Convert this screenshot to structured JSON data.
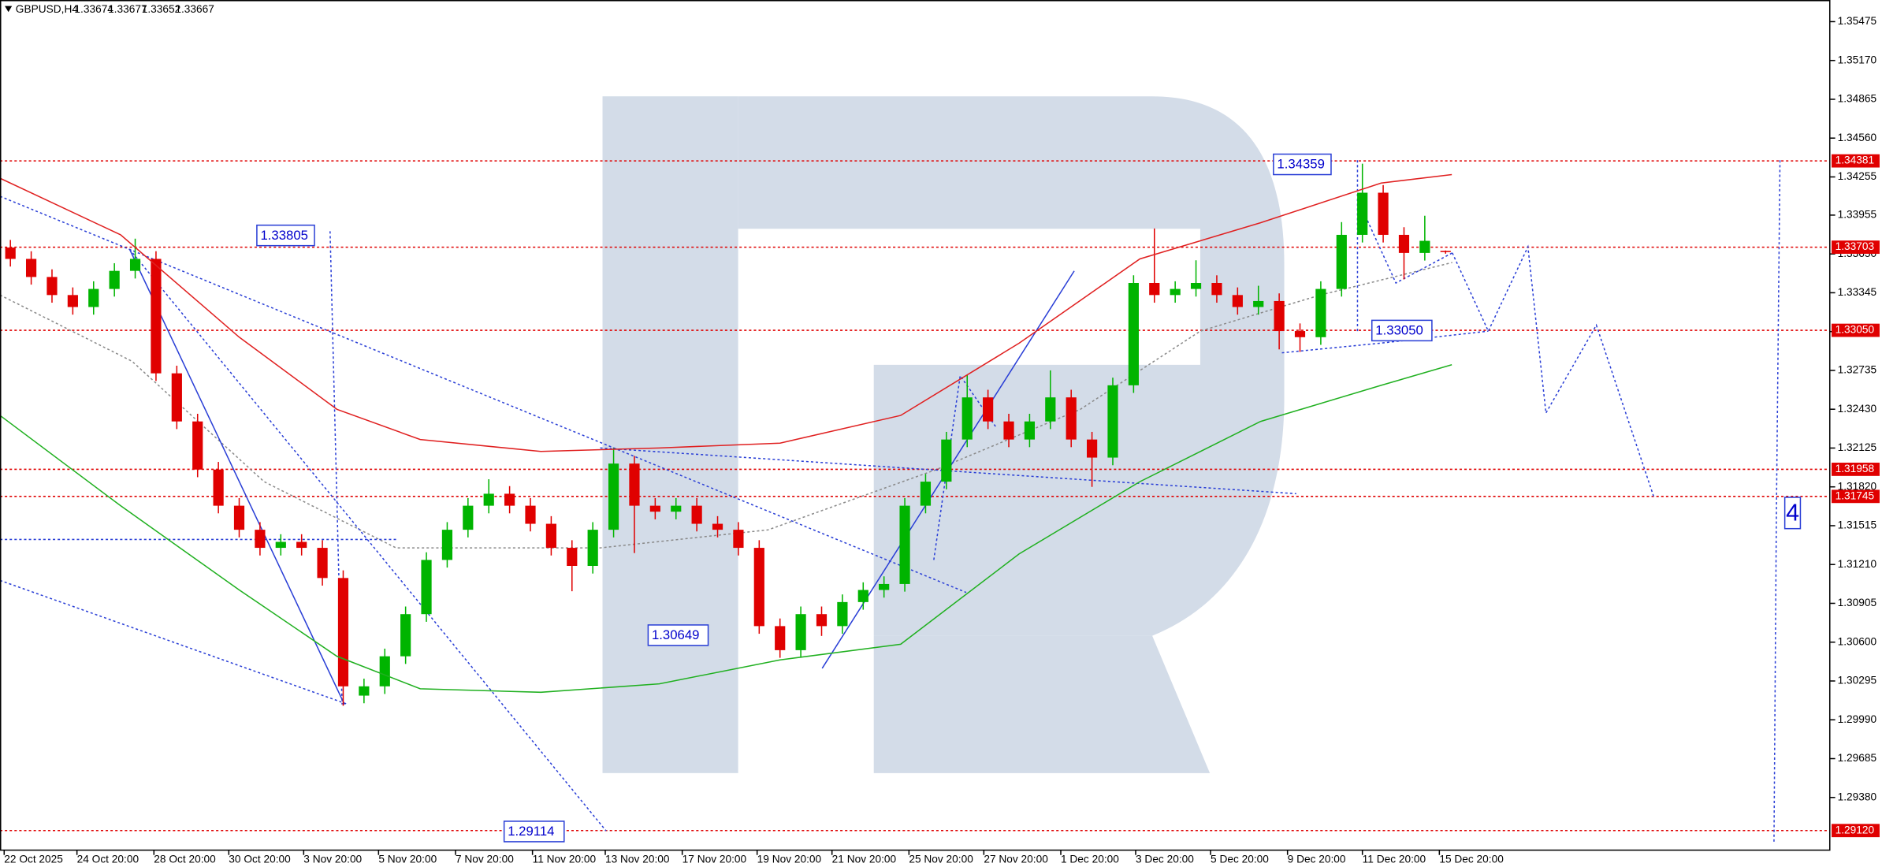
{
  "chart_data": {
    "type": "candlestick",
    "symbol": "GBPUSD,H4",
    "header_values": [
      1.33674,
      1.33677,
      1.33652,
      1.33667
    ],
    "up_color": "#00b400",
    "down_color": "#e00000",
    "ohlc": [
      [
        1.337,
        1.3376,
        1.33551,
        1.33611
      ],
      [
        1.33611,
        1.33671,
        1.33409,
        1.33469
      ],
      [
        1.33469,
        1.33529,
        1.33267,
        1.33327
      ],
      [
        1.33327,
        1.33387,
        1.33173,
        1.33233
      ],
      [
        1.33233,
        1.33435,
        1.33173,
        1.33375
      ],
      [
        1.33375,
        1.33577,
        1.33315,
        1.33517
      ],
      [
        1.33517,
        1.3377,
        1.33457,
        1.33611
      ],
      [
        1.33611,
        1.33671,
        1.32652,
        1.32712
      ],
      [
        1.32712,
        1.32772,
        1.32274,
        1.32334
      ],
      [
        1.32334,
        1.32394,
        1.31896,
        1.31956
      ],
      [
        1.31956,
        1.32016,
        1.31612,
        1.31672
      ],
      [
        1.31672,
        1.31732,
        1.31423,
        1.31483
      ],
      [
        1.31483,
        1.31543,
        1.31281,
        1.31341
      ],
      [
        1.31341,
        1.31448,
        1.31281,
        1.31388
      ],
      [
        1.31388,
        1.31448,
        1.31281,
        1.31341
      ],
      [
        1.31341,
        1.31401,
        1.31044,
        1.31104
      ],
      [
        1.31104,
        1.31164,
        1.301,
        1.30253
      ],
      [
        1.3018,
        1.30313,
        1.3012,
        1.30253
      ],
      [
        1.30253,
        1.30549,
        1.30193,
        1.30489
      ],
      [
        1.30489,
        1.3088,
        1.30429,
        1.3082
      ],
      [
        1.3082,
        1.31306,
        1.3076,
        1.31246
      ],
      [
        1.31246,
        1.31543,
        1.31186,
        1.31483
      ],
      [
        1.31483,
        1.31732,
        1.31423,
        1.31672
      ],
      [
        1.31672,
        1.3188,
        1.31612,
        1.31766
      ],
      [
        1.31766,
        1.31826,
        1.31612,
        1.31672
      ],
      [
        1.31672,
        1.31732,
        1.3147,
        1.3153
      ],
      [
        1.3153,
        1.3159,
        1.31281,
        1.31341
      ],
      [
        1.31341,
        1.31401,
        1.31,
        1.31199
      ],
      [
        1.31199,
        1.31543,
        1.31139,
        1.31483
      ],
      [
        1.31483,
        1.32125,
        1.31423,
        1.32003
      ],
      [
        1.32003,
        1.32063,
        1.313,
        1.31672
      ],
      [
        1.31672,
        1.31732,
        1.31565,
        1.31625
      ],
      [
        1.31625,
        1.31732,
        1.31565,
        1.31672
      ],
      [
        1.31672,
        1.31732,
        1.3147,
        1.3153
      ],
      [
        1.3153,
        1.3159,
        1.31423,
        1.31483
      ],
      [
        1.31483,
        1.31543,
        1.31281,
        1.31341
      ],
      [
        1.31341,
        1.31401,
        1.30666,
        1.30726
      ],
      [
        1.30726,
        1.30786,
        1.30477,
        1.30537
      ],
      [
        1.30537,
        1.3088,
        1.30477,
        1.3082
      ],
      [
        1.3082,
        1.3088,
        1.30649,
        1.30726
      ],
      [
        1.30726,
        1.30975,
        1.30666,
        1.30915
      ],
      [
        1.30915,
        1.3107,
        1.30855,
        1.3101
      ],
      [
        1.3101,
        1.31117,
        1.3095,
        1.31057
      ],
      [
        1.31057,
        1.31732,
        1.30997,
        1.31672
      ],
      [
        1.31672,
        1.31921,
        1.31612,
        1.31861
      ],
      [
        1.31861,
        1.32252,
        1.31801,
        1.32192
      ],
      [
        1.32192,
        1.327,
        1.32132,
        1.32523
      ],
      [
        1.32523,
        1.32583,
        1.32274,
        1.32334
      ],
      [
        1.32334,
        1.32394,
        1.32132,
        1.32192
      ],
      [
        1.32192,
        1.32394,
        1.32132,
        1.32334
      ],
      [
        1.32334,
        1.32735,
        1.32274,
        1.32523
      ],
      [
        1.32523,
        1.32583,
        1.32132,
        1.32192
      ],
      [
        1.32192,
        1.32252,
        1.3182,
        1.3205
      ],
      [
        1.3205,
        1.32678,
        1.3199,
        1.32618
      ],
      [
        1.32618,
        1.33482,
        1.32558,
        1.33422
      ],
      [
        1.33422,
        1.3385,
        1.33267,
        1.33327
      ],
      [
        1.33327,
        1.33435,
        1.33267,
        1.33375
      ],
      [
        1.33375,
        1.336,
        1.33315,
        1.33422
      ],
      [
        1.33422,
        1.33482,
        1.33267,
        1.33327
      ],
      [
        1.33327,
        1.33387,
        1.33173,
        1.33233
      ],
      [
        1.33233,
        1.334,
        1.33173,
        1.3328
      ],
      [
        1.3328,
        1.3334,
        1.329,
        1.33044
      ],
      [
        1.33044,
        1.33104,
        1.3288,
        1.32996
      ],
      [
        1.32996,
        1.33435,
        1.32936,
        1.33375
      ],
      [
        1.33375,
        1.339,
        1.33315,
        1.338
      ],
      [
        1.338,
        1.34359,
        1.3374,
        1.34131
      ],
      [
        1.34131,
        1.34191,
        1.3374,
        1.338
      ],
      [
        1.338,
        1.3386,
        1.3345,
        1.33658
      ],
      [
        1.33658,
        1.3395,
        1.33598,
        1.33753
      ],
      [
        1.33674,
        1.33677,
        1.33652,
        1.33667
      ]
    ],
    "series": [
      {
        "color": "#e02020",
        "x": [
          -0.5,
          5.3,
          11.0,
          15.7,
          19.7,
          25.5,
          31.2,
          37.0,
          42.8,
          48.5,
          54.3,
          60.1,
          65.9,
          69.3
        ],
        "values": [
          1.34245,
          1.338,
          1.32996,
          1.32429,
          1.32192,
          1.32098,
          1.32126,
          1.32164,
          1.32381,
          1.32949,
          1.33611,
          1.33895,
          1.34207,
          1.34273
        ]
      },
      {
        "color": "#20b020",
        "x": [
          -0.5,
          5.3,
          11.0,
          15.7,
          19.7,
          25.5,
          31.2,
          37.0,
          42.8,
          48.5,
          54.3,
          60.1,
          65.9,
          69.3
        ],
        "values": [
          1.32381,
          1.31672,
          1.3101,
          1.30489,
          1.30234,
          1.30206,
          1.30272,
          1.30461,
          1.30584,
          1.31293,
          1.31861,
          1.32334,
          1.32618,
          1.32779
        ]
      }
    ],
    "levels": [
      1.34381,
      1.33703,
      {
        "value": 1.3305,
        "label": "1.33050"
      },
      1.31958,
      1.31745,
      {
        "value": 1.2912,
        "label": "1.29120"
      }
    ],
    "level_color": "#e00000",
    "annotations": [
      "1.34359",
      "1.33805",
      "1.33050",
      "1.30649",
      "1.29114",
      "4"
    ],
    "xlim": [
      -0.5,
      87.5
    ],
    "xticks": [
      {
        "value": -0.3,
        "label": "22 Oct 2025"
      },
      {
        "value": 3.2,
        "label": "24 Oct 20:00"
      },
      {
        "value": 6.9,
        "label": "28 Oct 20:00"
      },
      {
        "value": 10.5,
        "label": "30 Oct 20:00"
      },
      {
        "value": 14.1,
        "label": "3 Nov 20:00"
      },
      {
        "value": 17.7,
        "label": "5 Nov 20:00"
      },
      {
        "value": 21.4,
        "label": "7 Nov 20:00"
      },
      {
        "value": 25.1,
        "label": "11 Nov 20:00"
      },
      {
        "value": 28.6,
        "label": "13 Nov 20:00"
      },
      {
        "value": 32.3,
        "label": "17 Nov 20:00"
      },
      {
        "value": 35.9,
        "label": "19 Nov 20:00"
      },
      {
        "value": 39.5,
        "label": "21 Nov 20:00"
      },
      {
        "value": 43.2,
        "label": "25 Nov 20:00"
      },
      {
        "value": 46.8,
        "label": "27 Nov 20:00"
      },
      {
        "value": 50.5,
        "label": "1 Dec 20:00"
      },
      {
        "value": 54.1,
        "label": "3 Dec 20:00"
      },
      {
        "value": 57.7,
        "label": "5 Dec 20:00"
      },
      {
        "value": 61.4,
        "label": "9 Dec 20:00"
      },
      {
        "value": 65.0,
        "label": "11 Dec 20:00"
      },
      {
        "value": 68.7,
        "label": "15 Dec 20:00"
      }
    ],
    "ylim": [
      1.28966,
      1.35645
    ],
    "yticks": [
      1.35475,
      {
        "value": 1.3517,
        "label": "1.35170"
      },
      1.34865,
      {
        "value": 1.3456,
        "label": "1.34560"
      },
      1.34255,
      1.33955,
      {
        "value": 1.3365,
        "label": "1.33650"
      },
      1.33345,
      {
        "value": 1.3304,
        "label": "1.33040"
      },
      1.32735,
      {
        "value": 1.3243,
        "label": "1.32430"
      },
      1.32125,
      {
        "value": 1.3182,
        "label": "1.31820"
      },
      1.31515,
      {
        "value": 1.3121,
        "label": "1.31210"
      },
      1.30905,
      {
        "value": 1.306,
        "label": "1.30600"
      },
      1.30295,
      {
        "value": 1.2999,
        "label": "1.29990"
      },
      1.29685,
      {
        "value": 1.2938,
        "label": "1.29380"
      }
    ]
  }
}
